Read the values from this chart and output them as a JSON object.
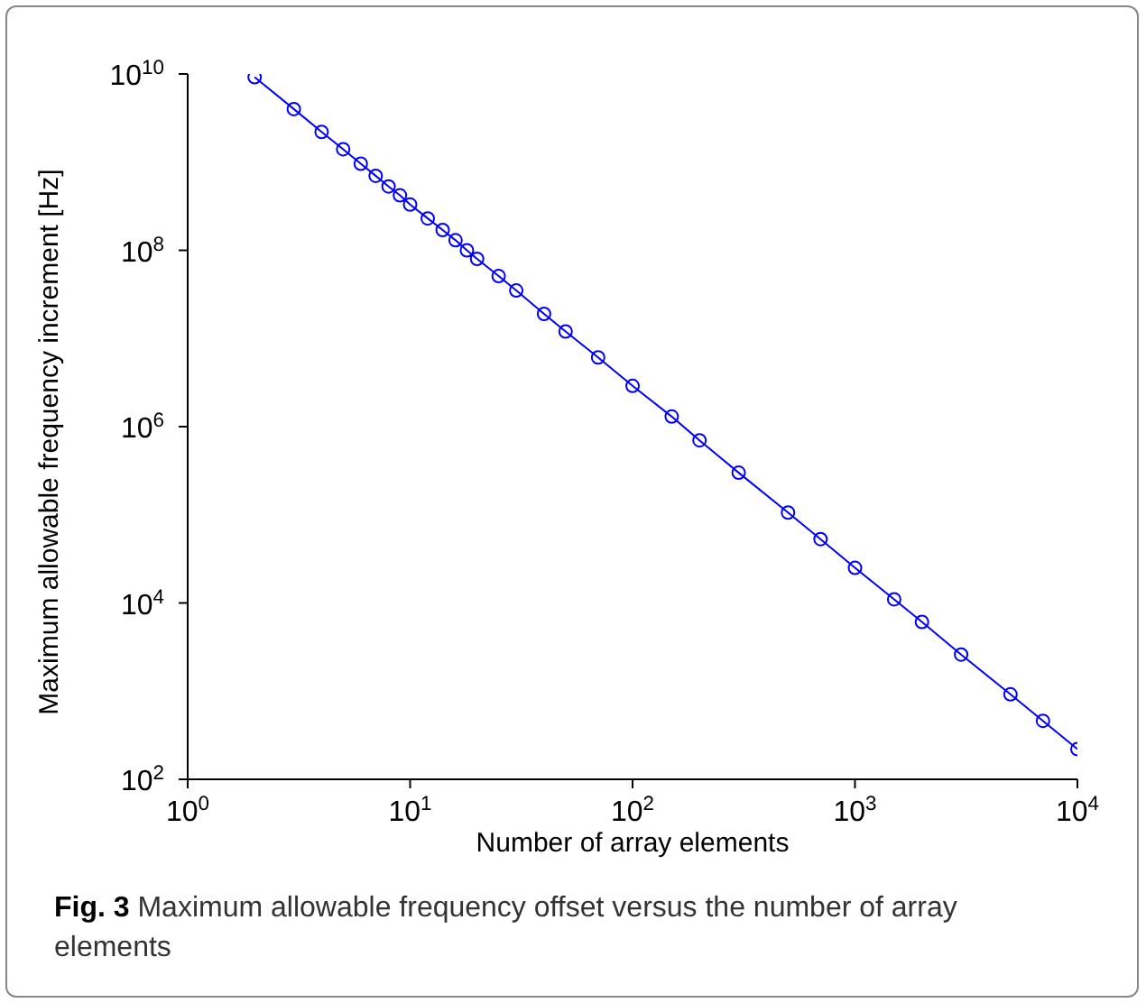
{
  "chart_data": {
    "type": "line",
    "xlabel": "Number of array elements",
    "ylabel": "Maximum allowable frequency increment [Hz]",
    "annotations": [
      "Fig. 3 Maximum allowable frequency offset versus the number of array elements"
    ],
    "x": [
      2,
      3,
      4,
      5,
      6,
      7,
      8,
      9,
      10,
      12,
      14,
      16,
      18,
      20,
      25,
      30,
      40,
      50,
      70,
      100,
      150,
      200,
      300,
      500,
      700,
      1000,
      1500,
      2000,
      3000,
      5000,
      7000,
      10000
    ],
    "series": [
      {
        "color": "#0000ff",
        "values": [
          9200000000.0,
          4000000000.0,
          2200000000.0,
          1400000000.0,
          960000000.0,
          700000000.0,
          530000000.0,
          420000000.0,
          330000000.0,
          230000000.0,
          170000000.0,
          130000000.0,
          100000000.0,
          80000000.0,
          51000000.0,
          35000000.0,
          19000000.0,
          12000000.0,
          6100000.0,
          2900000.0,
          1300000.0,
          700000.0,
          300000.0,
          106000.0,
          53000.0,
          25000.0,
          11000.0,
          6100,
          2600,
          920,
          460,
          220
        ]
      }
    ],
    "log": "xy",
    "xlim": [
      1,
      10000
    ],
    "ylim": [
      100,
      10000000000
    ],
    "xticks": [
      {
        "value": 1,
        "label": "10$^{0}$"
      },
      {
        "value": 10,
        "label": "10$^{1}$"
      },
      {
        "value": 100,
        "label": "10$^{2}$"
      },
      {
        "value": 1000,
        "label": "10$^{3}$"
      },
      {
        "value": 10000,
        "label": "10$^{4}$"
      }
    ],
    "yticks": [
      {
        "value": 100,
        "label": "10$^{2}$"
      },
      {
        "value": 10000,
        "label": "10$^{4}$"
      },
      {
        "value": 1000000,
        "label": "10$^{6}$"
      },
      {
        "value": 100000000,
        "label": "10$^{8}$"
      },
      {
        "value": 10000000000,
        "label": "10$^{10}$"
      }
    ],
    "grid": false,
    "legend": false,
    "marker": "circle",
    "line_style": "solid"
  }
}
